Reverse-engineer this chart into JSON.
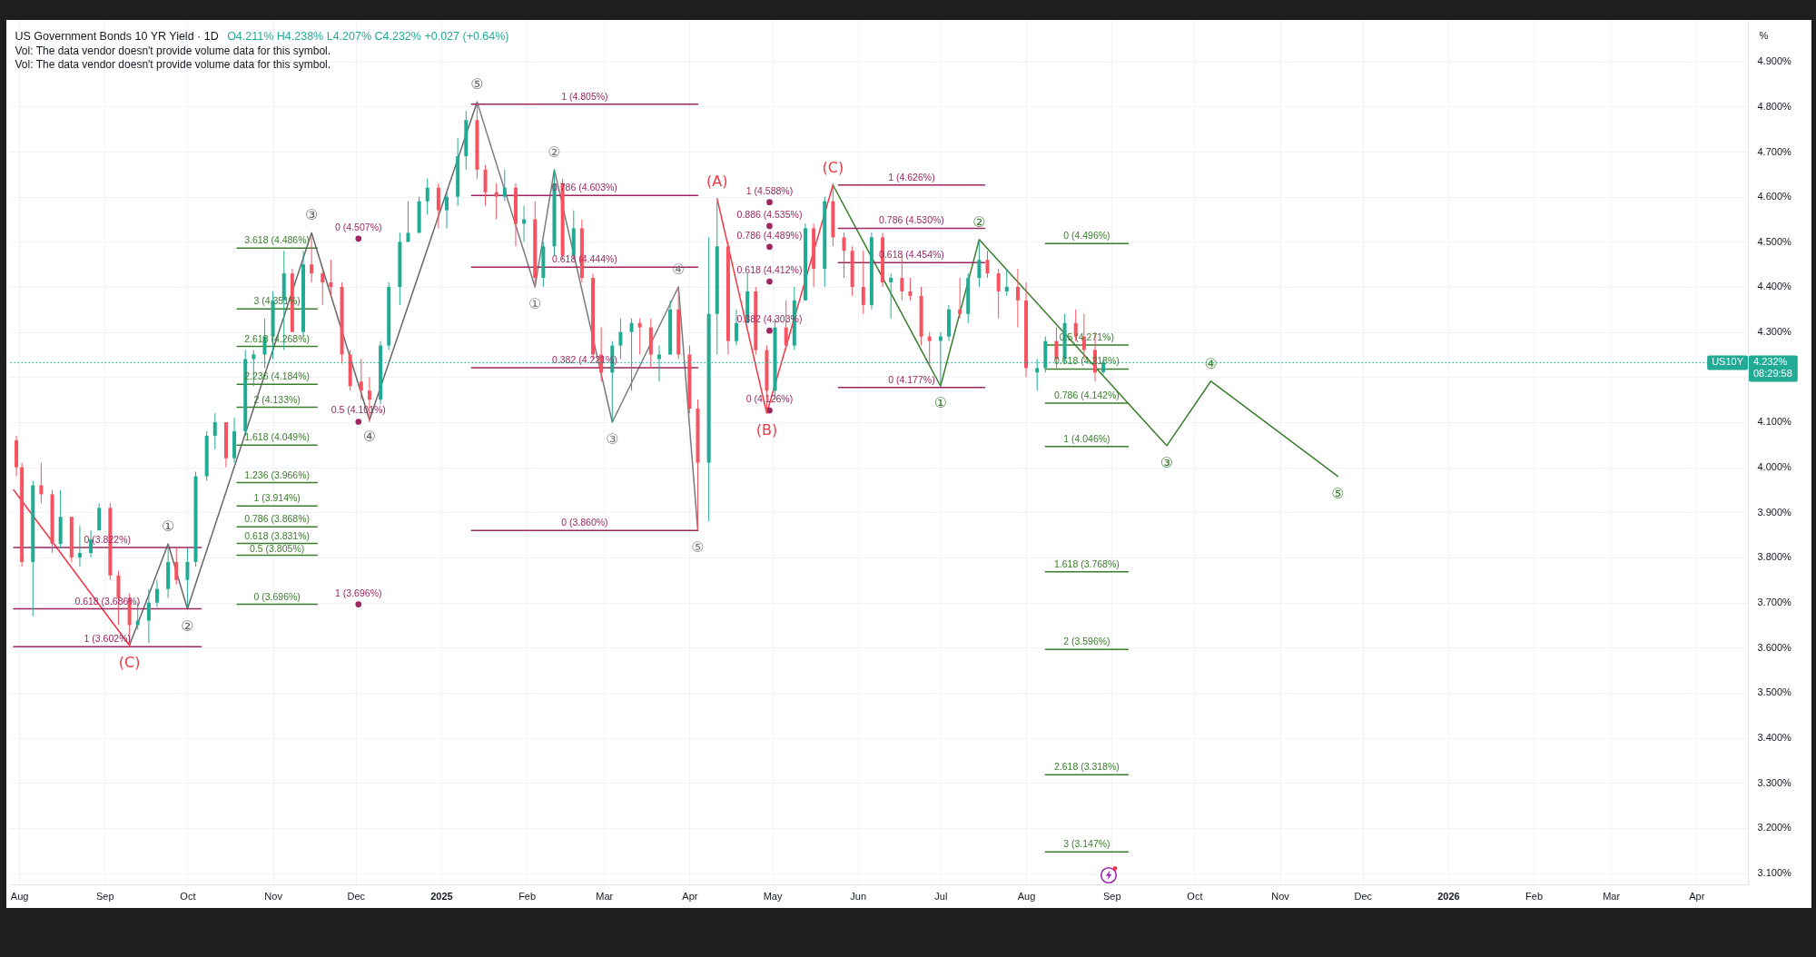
{
  "chart_data": {
    "type": "candlestick",
    "title": "US Government Bonds 10 YR Yield · 1D",
    "subtitle": "O4.211% H4.238% L4.207% C4.232% +0.027 (+0.64%)",
    "ylabel": "%",
    "annotations": [
      "Vol: The data vendor doesn't provide volume data for this symbol.",
      "Vol: The data vendor doesn't provide volume data for this symbol.",
      {
        "text": "4.232%",
        "x": "2026-04-18",
        "y": 4.232
      },
      {
        "text": "08:29:58",
        "x": "2026-04-18",
        "y": 4.232
      }
    ],
    "x": [
      "2024-07-31",
      "2024-08-02",
      "2024-08-06",
      "2024-08-09",
      "2024-08-13",
      "2024-08-16",
      "2024-08-20",
      "2024-08-23",
      "2024-08-27",
      "2024-08-30",
      "2024-09-03",
      "2024-09-06",
      "2024-09-10",
      "2024-09-13",
      "2024-09-17",
      "2024-09-20",
      "2024-09-24",
      "2024-09-27",
      "2024-10-01",
      "2024-10-04",
      "2024-10-08",
      "2024-10-11",
      "2024-10-15",
      "2024-10-18",
      "2024-10-22",
      "2024-10-25",
      "2024-10-29",
      "2024-11-01",
      "2024-11-05",
      "2024-11-08",
      "2024-11-12",
      "2024-11-15",
      "2024-11-19",
      "2024-11-22",
      "2024-11-26",
      "2024-11-29",
      "2024-12-03",
      "2024-12-06",
      "2024-12-10",
      "2024-12-13",
      "2024-12-17",
      "2024-12-20",
      "2024-12-24",
      "2024-12-27",
      "2024-12-31",
      "2025-01-03",
      "2025-01-07",
      "2025-01-10",
      "2025-01-14",
      "2025-01-17",
      "2025-01-21",
      "2025-01-24",
      "2025-01-28",
      "2025-01-31",
      "2025-02-04",
      "2025-02-07",
      "2025-02-11",
      "2025-02-14",
      "2025-02-18",
      "2025-02-21",
      "2025-02-25",
      "2025-02-28",
      "2025-03-04",
      "2025-03-07",
      "2025-03-11",
      "2025-03-14",
      "2025-03-18",
      "2025-03-21",
      "2025-03-25",
      "2025-03-28",
      "2025-04-01",
      "2025-04-04",
      "2025-04-08",
      "2025-04-11",
      "2025-04-15",
      "2025-04-18",
      "2025-04-22",
      "2025-04-25",
      "2025-04-29",
      "2025-05-02",
      "2025-05-06",
      "2025-05-09",
      "2025-05-13",
      "2025-05-16",
      "2025-05-20",
      "2025-05-23",
      "2025-05-27",
      "2025-05-30",
      "2025-06-03",
      "2025-06-06",
      "2025-06-10",
      "2025-06-13",
      "2025-06-17",
      "2025-06-20",
      "2025-06-24",
      "2025-06-27",
      "2025-07-01",
      "2025-07-04",
      "2025-07-08",
      "2025-07-11",
      "2025-07-15",
      "2025-07-18",
      "2025-07-22",
      "2025-07-25",
      "2025-07-29",
      "2025-08-01",
      "2025-08-05",
      "2025-08-08",
      "2025-08-12",
      "2025-08-15",
      "2025-08-19",
      "2025-08-22",
      "2025-08-26",
      "2025-08-29"
    ],
    "ohlc": [
      [
        4.06,
        4.07,
        3.98,
        4.0
      ],
      [
        4.0,
        4.01,
        3.78,
        3.79
      ],
      [
        3.79,
        3.97,
        3.67,
        3.96
      ],
      [
        3.96,
        4.01,
        3.92,
        3.94
      ],
      [
        3.94,
        3.95,
        3.81,
        3.83
      ],
      [
        3.83,
        3.95,
        3.82,
        3.89
      ],
      [
        3.89,
        3.89,
        3.79,
        3.8
      ],
      [
        3.8,
        3.87,
        3.78,
        3.81
      ],
      [
        3.81,
        3.86,
        3.8,
        3.84
      ],
      [
        3.86,
        3.92,
        3.86,
        3.91
      ],
      [
        3.91,
        3.92,
        3.75,
        3.76
      ],
      [
        3.76,
        3.77,
        3.65,
        3.71
      ],
      [
        3.71,
        3.72,
        3.6,
        3.65
      ],
      [
        3.65,
        3.7,
        3.64,
        3.66
      ],
      [
        3.66,
        3.73,
        3.61,
        3.7
      ],
      [
        3.7,
        3.75,
        3.69,
        3.73
      ],
      [
        3.73,
        3.83,
        3.71,
        3.79
      ],
      [
        3.79,
        3.82,
        3.74,
        3.75
      ],
      [
        3.75,
        3.82,
        3.69,
        3.79
      ],
      [
        3.79,
        3.99,
        3.78,
        3.98
      ],
      [
        3.98,
        4.08,
        3.97,
        4.07
      ],
      [
        4.07,
        4.12,
        4.04,
        4.1
      ],
      [
        4.1,
        4.1,
        4.0,
        4.02
      ],
      [
        4.02,
        4.11,
        4.01,
        4.08
      ],
      [
        4.08,
        4.26,
        4.07,
        4.24
      ],
      [
        4.24,
        4.26,
        4.18,
        4.25
      ],
      [
        4.25,
        4.33,
        4.22,
        4.29
      ],
      [
        4.29,
        4.39,
        4.24,
        4.37
      ],
      [
        4.37,
        4.48,
        4.26,
        4.43
      ],
      [
        4.43,
        4.44,
        4.3,
        4.3
      ],
      [
        4.3,
        4.48,
        4.29,
        4.45
      ],
      [
        4.45,
        4.51,
        4.41,
        4.43
      ],
      [
        4.43,
        4.44,
        4.36,
        4.41
      ],
      [
        4.41,
        4.46,
        4.38,
        4.4
      ],
      [
        4.4,
        4.41,
        4.23,
        4.25
      ],
      [
        4.25,
        4.26,
        4.17,
        4.18
      ],
      [
        4.19,
        4.24,
        4.15,
        4.17
      ],
      [
        4.17,
        4.2,
        4.1,
        4.15
      ],
      [
        4.15,
        4.28,
        4.14,
        4.27
      ],
      [
        4.27,
        4.41,
        4.26,
        4.4
      ],
      [
        4.4,
        4.52,
        4.36,
        4.5
      ],
      [
        4.5,
        4.59,
        4.5,
        4.52
      ],
      [
        4.52,
        4.6,
        4.52,
        4.59
      ],
      [
        4.59,
        4.64,
        4.56,
        4.62
      ],
      [
        4.62,
        4.63,
        4.53,
        4.57
      ],
      [
        4.57,
        4.61,
        4.53,
        4.6
      ],
      [
        4.6,
        4.73,
        4.58,
        4.69
      ],
      [
        4.69,
        4.79,
        4.66,
        4.77
      ],
      [
        4.77,
        4.81,
        4.64,
        4.66
      ],
      [
        4.66,
        4.67,
        4.58,
        4.61
      ],
      [
        4.61,
        4.63,
        4.55,
        4.6
      ],
      [
        4.6,
        4.66,
        4.59,
        4.62
      ],
      [
        4.62,
        4.63,
        4.49,
        4.54
      ],
      [
        4.54,
        4.58,
        4.5,
        4.55
      ],
      [
        4.55,
        4.59,
        4.4,
        4.42
      ],
      [
        4.42,
        4.5,
        4.4,
        4.49
      ],
      [
        4.49,
        4.66,
        4.47,
        4.63
      ],
      [
        4.63,
        4.64,
        4.46,
        4.47
      ],
      [
        4.47,
        4.57,
        4.46,
        4.53
      ],
      [
        4.53,
        4.55,
        4.41,
        4.42
      ],
      [
        4.42,
        4.43,
        4.24,
        4.25
      ],
      [
        4.25,
        4.31,
        4.19,
        4.21
      ],
      [
        4.21,
        4.28,
        4.1,
        4.27
      ],
      [
        4.27,
        4.33,
        4.24,
        4.3
      ],
      [
        4.3,
        4.33,
        4.17,
        4.32
      ],
      [
        4.32,
        4.33,
        4.25,
        4.31
      ],
      [
        4.31,
        4.33,
        4.22,
        4.25
      ],
      [
        4.24,
        4.27,
        4.19,
        4.25
      ],
      [
        4.25,
        4.37,
        4.25,
        4.35
      ],
      [
        4.35,
        4.4,
        4.24,
        4.25
      ],
      [
        4.25,
        4.27,
        4.12,
        4.13
      ],
      [
        4.13,
        4.15,
        3.86,
        4.01
      ],
      [
        4.01,
        4.51,
        3.88,
        4.34
      ],
      [
        4.34,
        4.59,
        4.25,
        4.49
      ],
      [
        4.49,
        4.5,
        4.25,
        4.28
      ],
      [
        4.28,
        4.35,
        4.27,
        4.32
      ],
      [
        4.32,
        4.43,
        4.32,
        4.39
      ],
      [
        4.39,
        4.4,
        4.25,
        4.26
      ],
      [
        4.26,
        4.27,
        4.12,
        4.17
      ],
      [
        4.17,
        4.33,
        4.15,
        4.31
      ],
      [
        4.31,
        4.37,
        4.26,
        4.27
      ],
      [
        4.27,
        4.4,
        4.26,
        4.37
      ],
      [
        4.37,
        4.54,
        4.37,
        4.53
      ],
      [
        4.53,
        4.54,
        4.4,
        4.44
      ],
      [
        4.44,
        4.6,
        4.4,
        4.59
      ],
      [
        4.59,
        4.63,
        4.49,
        4.51
      ],
      [
        4.51,
        4.52,
        4.42,
        4.48
      ],
      [
        4.48,
        4.49,
        4.38,
        4.4
      ],
      [
        4.4,
        4.48,
        4.34,
        4.36
      ],
      [
        4.36,
        4.52,
        4.35,
        4.51
      ],
      [
        4.51,
        4.52,
        4.4,
        4.41
      ],
      [
        4.41,
        4.43,
        4.33,
        4.42
      ],
      [
        4.42,
        4.47,
        4.37,
        4.39
      ],
      [
        4.39,
        4.42,
        4.37,
        4.38
      ],
      [
        4.38,
        4.4,
        4.27,
        4.29
      ],
      [
        4.29,
        4.3,
        4.23,
        4.28
      ],
      [
        4.28,
        4.3,
        4.18,
        4.29
      ],
      [
        4.29,
        4.36,
        4.28,
        4.35
      ],
      [
        4.35,
        4.42,
        4.33,
        4.34
      ],
      [
        4.34,
        4.43,
        4.32,
        4.42
      ],
      [
        4.42,
        4.5,
        4.4,
        4.46
      ],
      [
        4.46,
        4.48,
        4.42,
        4.43
      ],
      [
        4.43,
        4.44,
        4.33,
        4.39
      ],
      [
        4.39,
        4.44,
        4.38,
        4.4
      ],
      [
        4.4,
        4.44,
        4.31,
        4.37
      ],
      [
        4.37,
        4.41,
        4.2,
        4.22
      ],
      [
        4.21,
        4.24,
        4.17,
        4.22
      ],
      [
        4.22,
        4.29,
        4.21,
        4.28
      ],
      [
        4.28,
        4.31,
        4.22,
        4.24
      ],
      [
        4.24,
        4.34,
        4.23,
        4.32
      ],
      [
        4.32,
        4.35,
        4.28,
        4.29
      ],
      [
        4.29,
        4.34,
        4.24,
        4.26
      ],
      [
        4.26,
        4.3,
        4.19,
        4.21
      ],
      [
        4.211,
        4.238,
        4.207,
        4.232
      ]
    ],
    "colors": [
      "#f7525f",
      "#f7525f",
      "#22ab94",
      "#f7525f",
      "#f7525f",
      "#22ab94",
      "#f7525f",
      "#22ab94",
      "#22ab94",
      "#22ab94",
      "#f7525f",
      "#f7525f",
      "#f7525f",
      "#22ab94",
      "#22ab94",
      "#22ab94",
      "#22ab94",
      "#f7525f",
      "#22ab94",
      "#22ab94",
      "#22ab94",
      "#22ab94",
      "#f7525f",
      "#22ab94",
      "#22ab94",
      "#22ab94",
      "#22ab94",
      "#22ab94",
      "#22ab94",
      "#f7525f",
      "#22ab94",
      "#f7525f",
      "#f7525f",
      "#f7525f",
      "#f7525f",
      "#f7525f",
      "#f7525f",
      "#f7525f",
      "#22ab94",
      "#22ab94",
      "#22ab94",
      "#22ab94",
      "#22ab94",
      "#22ab94",
      "#f7525f",
      "#22ab94",
      "#22ab94",
      "#22ab94",
      "#f7525f",
      "#f7525f",
      "#f7525f",
      "#22ab94",
      "#f7525f",
      "#22ab94",
      "#f7525f",
      "#22ab94",
      "#22ab94",
      "#f7525f",
      "#22ab94",
      "#f7525f",
      "#f7525f",
      "#f7525f",
      "#22ab94",
      "#22ab94",
      "#22ab94",
      "#f7525f",
      "#f7525f",
      "#22ab94",
      "#22ab94",
      "#f7525f",
      "#f7525f",
      "#f7525f",
      "#22ab94",
      "#22ab94",
      "#f7525f",
      "#22ab94",
      "#22ab94",
      "#f7525f",
      "#f7525f",
      "#22ab94",
      "#f7525f",
      "#22ab94",
      "#22ab94",
      "#f7525f",
      "#22ab94",
      "#f7525f",
      "#f7525f",
      "#f7525f",
      "#f7525f",
      "#22ab94",
      "#f7525f",
      "#22ab94",
      "#f7525f",
      "#f7525f",
      "#f7525f",
      "#f7525f",
      "#22ab94",
      "#22ab94",
      "#f7525f",
      "#22ab94",
      "#22ab94",
      "#f7525f",
      "#f7525f",
      "#22ab94",
      "#f7525f",
      "#f7525f",
      "#22ab94",
      "#22ab94",
      "#f7525f",
      "#22ab94",
      "#f7525f",
      "#f7525f",
      "#f7525f",
      "#22ab94"
    ],
    "series": [
      {
        "type": "line",
        "color": "#f23645",
        "x": [
          "2024-07-30",
          "2024-09-10"
        ],
        "values": [
          3.95,
          3.605
        ],
        "value_labels": [
          null,
          "(C)"
        ]
      },
      {
        "type": "line",
        "color": "#666666",
        "x": [
          "2024-09-10",
          "2024-09-24",
          "2024-10-01",
          "2024-11-15",
          "2024-12-06",
          "2025-01-14"
        ],
        "values": [
          3.605,
          3.83,
          3.686,
          4.52,
          4.105,
          4.81
        ],
        "value_labels": [
          null,
          "①",
          "②",
          "③",
          "④",
          "⑤"
        ]
      },
      {
        "type": "line",
        "color": "#7a7a7a",
        "x": [
          "2025-01-14",
          "2025-02-04",
          "2025-02-11",
          "2025-03-04",
          "2025-03-28",
          "2025-04-04"
        ],
        "values": [
          4.81,
          4.4,
          4.66,
          4.1,
          4.4,
          3.86
        ],
        "value_labels": [
          null,
          "①",
          "②",
          "③",
          "④",
          "⑤"
        ]
      },
      {
        "type": "line",
        "color": "#f23645",
        "x": [
          "2025-04-11",
          "2025-04-29",
          "2025-05-23"
        ],
        "values": [
          4.596,
          4.12,
          4.626
        ],
        "value_labels": [
          "(A)",
          "(B)",
          "(C)"
        ]
      },
      {
        "type": "line",
        "color": "#3a7d2c",
        "x": [
          "2025-05-23",
          "2025-07-01",
          "2025-07-15",
          "2025-09-21",
          "2025-10-07",
          "2025-11-22"
        ],
        "values": [
          4.626,
          4.18,
          4.505,
          4.048,
          4.191,
          3.98
        ],
        "value_labels": [
          null,
          "①",
          "②",
          "③",
          "④",
          "⑤"
        ]
      },
      {
        "type": "line",
        "name": "0 (3.822%)",
        "color": "#9c2760",
        "x": [
          "2024-07-30",
          "2024-10-06"
        ],
        "values": [
          3.822,
          3.822
        ]
      },
      {
        "type": "line",
        "name": "0.618 (3.686%)",
        "color": "#9c2760",
        "x": [
          "2024-07-30",
          "2024-10-06"
        ],
        "values": [
          3.686,
          3.686
        ]
      },
      {
        "type": "line",
        "name": "1 (3.602%)",
        "color": "#9c2760",
        "x": [
          "2024-07-30",
          "2024-10-06"
        ],
        "values": [
          3.602,
          3.602
        ]
      },
      {
        "type": "line",
        "name": "0 (3.696%)",
        "color": "#3a7d2c",
        "x": [
          "2024-10-19",
          "2024-11-17"
        ],
        "values": [
          3.696,
          3.696
        ]
      },
      {
        "type": "line",
        "name": "0.5 (3.805%)",
        "color": "#3a7d2c",
        "x": [
          "2024-10-19",
          "2024-11-17"
        ],
        "values": [
          3.805,
          3.805
        ]
      },
      {
        "type": "line",
        "name": "0.618 (3.831%)",
        "color": "#3a7d2c",
        "x": [
          "2024-10-19",
          "2024-11-17"
        ],
        "values": [
          3.831,
          3.831
        ]
      },
      {
        "type": "line",
        "name": "0.786 (3.868%)",
        "color": "#3a7d2c",
        "x": [
          "2024-10-19",
          "2024-11-17"
        ],
        "values": [
          3.868,
          3.868
        ]
      },
      {
        "type": "line",
        "name": "1 (3.914%)",
        "color": "#3a7d2c",
        "x": [
          "2024-10-19",
          "2024-11-17"
        ],
        "values": [
          3.914,
          3.914
        ]
      },
      {
        "type": "line",
        "name": "1.236 (3.966%)",
        "color": "#3a7d2c",
        "x": [
          "2024-10-19",
          "2024-11-17"
        ],
        "values": [
          3.966,
          3.966
        ]
      },
      {
        "type": "line",
        "name": "1.618 (4.049%)",
        "color": "#3a7d2c",
        "x": [
          "2024-10-19",
          "2024-11-17"
        ],
        "values": [
          4.049,
          4.049
        ]
      },
      {
        "type": "line",
        "name": "2 (4.133%)",
        "color": "#3a7d2c",
        "x": [
          "2024-10-19",
          "2024-11-17"
        ],
        "values": [
          4.133,
          4.133
        ]
      },
      {
        "type": "line",
        "name": "2.236 (4.184%)",
        "color": "#3a7d2c",
        "x": [
          "2024-10-19",
          "2024-11-17"
        ],
        "values": [
          4.184,
          4.184
        ]
      },
      {
        "type": "line",
        "name": "2.618 (4.268%)",
        "color": "#3a7d2c",
        "x": [
          "2024-10-19",
          "2024-11-17"
        ],
        "values": [
          4.268,
          4.268
        ]
      },
      {
        "type": "line",
        "name": "3 (4.351%)",
        "color": "#3a7d2c",
        "x": [
          "2024-10-19",
          "2024-11-17"
        ],
        "values": [
          4.351,
          4.351
        ]
      },
      {
        "type": "line",
        "name": "3.618 (4.486%)",
        "color": "#3a7d2c",
        "x": [
          "2024-10-19",
          "2024-11-17"
        ],
        "values": [
          4.486,
          4.486
        ]
      },
      {
        "type": "line",
        "name": "1 (4.805%)",
        "color": "#9c2760",
        "x": [
          "2025-01-12",
          "2025-04-04"
        ],
        "values": [
          4.805,
          4.805
        ]
      },
      {
        "type": "line",
        "name": "0.786 (4.603%)",
        "color": "#9c2760",
        "x": [
          "2025-01-12",
          "2025-04-04"
        ],
        "values": [
          4.603,
          4.603
        ]
      },
      {
        "type": "line",
        "name": "0.618 (4.444%)",
        "color": "#9c2760",
        "x": [
          "2025-01-12",
          "2025-04-04"
        ],
        "values": [
          4.444,
          4.444
        ]
      },
      {
        "type": "line",
        "name": "0.382 (4.221%)",
        "color": "#9c2760",
        "x": [
          "2025-01-12",
          "2025-04-04"
        ],
        "values": [
          4.221,
          4.221
        ]
      },
      {
        "type": "line",
        "name": "0 (3.860%)",
        "color": "#9c2760",
        "x": [
          "2025-01-12",
          "2025-04-04"
        ],
        "values": [
          3.86,
          3.86
        ]
      },
      {
        "type": "line",
        "name": "1 (4.626%)",
        "color": "#9c2760",
        "x": [
          "2025-05-25",
          "2025-07-17"
        ],
        "values": [
          4.626,
          4.626
        ]
      },
      {
        "type": "line",
        "name": "0.786 (4.530%)",
        "color": "#9c2760",
        "x": [
          "2025-05-25",
          "2025-07-17"
        ],
        "values": [
          4.53,
          4.53
        ]
      },
      {
        "type": "line",
        "name": "0.618 (4.454%)",
        "color": "#9c2760",
        "x": [
          "2025-05-25",
          "2025-07-17"
        ],
        "values": [
          4.454,
          4.454
        ]
      },
      {
        "type": "line",
        "name": "0 (4.177%)",
        "color": "#9c2760",
        "x": [
          "2025-05-25",
          "2025-07-17"
        ],
        "values": [
          4.177,
          4.177
        ]
      },
      {
        "type": "line",
        "name": "0 (4.496%)",
        "color": "#3a7d2c",
        "x": [
          "2025-08-08",
          "2025-09-07"
        ],
        "values": [
          4.496,
          4.496
        ]
      },
      {
        "type": "line",
        "name": "0.5 (4.271%)",
        "color": "#3a7d2c",
        "x": [
          "2025-08-08",
          "2025-09-07"
        ],
        "values": [
          4.271,
          4.271
        ]
      },
      {
        "type": "line",
        "name": "0.618 (4.218%)",
        "color": "#3a7d2c",
        "x": [
          "2025-08-08",
          "2025-09-07"
        ],
        "values": [
          4.218,
          4.218
        ]
      },
      {
        "type": "line",
        "name": "0.786 (4.142%)",
        "color": "#3a7d2c",
        "x": [
          "2025-08-08",
          "2025-09-07"
        ],
        "values": [
          4.142,
          4.142
        ]
      },
      {
        "type": "line",
        "name": "1 (4.046%)",
        "color": "#3a7d2c",
        "x": [
          "2025-08-08",
          "2025-09-07"
        ],
        "values": [
          4.046,
          4.046
        ]
      },
      {
        "type": "line",
        "name": "1.618 (3.768%)",
        "color": "#3a7d2c",
        "x": [
          "2025-08-08",
          "2025-09-07"
        ],
        "values": [
          3.768,
          3.768
        ]
      },
      {
        "type": "line",
        "name": "2 (3.596%)",
        "color": "#3a7d2c",
        "x": [
          "2025-08-08",
          "2025-09-07"
        ],
        "values": [
          3.596,
          3.596
        ]
      },
      {
        "type": "line",
        "name": "2.618 (3.318%)",
        "color": "#3a7d2c",
        "x": [
          "2025-08-08",
          "2025-09-07"
        ],
        "values": [
          3.318,
          3.318
        ]
      },
      {
        "type": "line",
        "name": "3 (3.147%)",
        "color": "#3a7d2c",
        "x": [
          "2025-08-08",
          "2025-09-07"
        ],
        "values": [
          3.147,
          3.147
        ]
      },
      {
        "type": "scatter",
        "marker": "circle",
        "color": "#9c2760",
        "x": [
          "2024-12-02",
          "2024-12-02",
          "2024-12-02"
        ],
        "values": [
          4.507,
          4.101,
          3.696
        ],
        "value_labels": [
          "0 (4.507%)",
          "0.5 (4.101%)",
          "1 (3.696%)"
        ]
      },
      {
        "type": "scatter",
        "marker": "circle",
        "color": "#9c2760",
        "x": [
          "2025-04-30",
          "2025-04-30",
          "2025-04-30",
          "2025-04-30",
          "2025-04-30",
          "2025-04-30"
        ],
        "values": [
          4.588,
          4.535,
          4.489,
          4.412,
          4.303,
          4.126
        ],
        "value_labels": [
          "1 (4.588%)",
          "0.886 (4.535%)",
          "0.786 (4.489%)",
          "0.618 (4.412%)",
          "0.382 (4.303%)",
          "0 (4.126%)"
        ]
      }
    ],
    "xlim": [
      "2024-07-30",
      "2026-04-18"
    ],
    "xticks": [
      {
        "value": "2024-08-01",
        "label": "Aug"
      },
      {
        "value": "2024-09-01",
        "label": "Sep"
      },
      {
        "value": "2024-10-01",
        "label": "Oct"
      },
      {
        "value": "2024-11-01",
        "label": "Nov"
      },
      {
        "value": "2024-12-01",
        "label": "Dec"
      },
      {
        "value": "2025-01-01",
        "label": "2025"
      },
      {
        "value": "2025-02-01",
        "label": "Feb"
      },
      {
        "value": "2025-03-01",
        "label": "Mar"
      },
      {
        "value": "2025-04-01",
        "label": "Apr"
      },
      {
        "value": "2025-05-01",
        "label": "May"
      },
      {
        "value": "2025-06-01",
        "label": "Jun"
      },
      {
        "value": "2025-07-01",
        "label": "Jul"
      },
      {
        "value": "2025-08-01",
        "label": "Aug"
      },
      {
        "value": "2025-09-01",
        "label": "Sep"
      },
      {
        "value": "2025-10-01",
        "label": "Oct"
      },
      {
        "value": "2025-11-01",
        "label": "Nov"
      },
      {
        "value": "2025-12-01",
        "label": "Dec"
      },
      {
        "value": "2026-01-01",
        "label": "2026"
      },
      {
        "value": "2026-02-01",
        "label": "Feb"
      },
      {
        "value": "2026-03-01",
        "label": "Mar"
      },
      {
        "value": "2026-04-01",
        "label": "Apr"
      }
    ],
    "ylim": [
      3.075,
      4.99
    ],
    "yticks": [
      {
        "value": 3.1,
        "label": "3.100%"
      },
      {
        "value": 3.2,
        "label": "3.200%"
      },
      {
        "value": 3.3,
        "label": "3.300%"
      },
      {
        "value": 3.4,
        "label": "3.400%"
      },
      {
        "value": 3.5,
        "label": "3.500%"
      },
      {
        "value": 3.6,
        "label": "3.600%"
      },
      {
        "value": 3.7,
        "label": "3.700%"
      },
      {
        "value": 3.8,
        "label": "3.800%"
      },
      {
        "value": 3.9,
        "label": "3.900%"
      },
      {
        "value": 4.0,
        "label": "4.000%"
      },
      {
        "value": 4.1,
        "label": "4.100%"
      },
      {
        "value": 4.2,
        "label": null
      },
      {
        "value": 4.3,
        "label": "4.300%"
      },
      {
        "value": 4.4,
        "label": "4.400%"
      },
      {
        "value": 4.5,
        "label": "4.500%"
      },
      {
        "value": 4.6,
        "label": "4.600%"
      },
      {
        "value": 4.7,
        "label": "4.700%"
      },
      {
        "value": 4.8,
        "label": "4.800%"
      },
      {
        "value": 4.9,
        "label": "4.900%"
      }
    ],
    "ref_lines": [
      {
        "axis": "y",
        "value": 4.232,
        "label": "US10Y",
        "color": "#22ab94",
        "line_style": "dotted"
      }
    ],
    "grid": true
  }
}
